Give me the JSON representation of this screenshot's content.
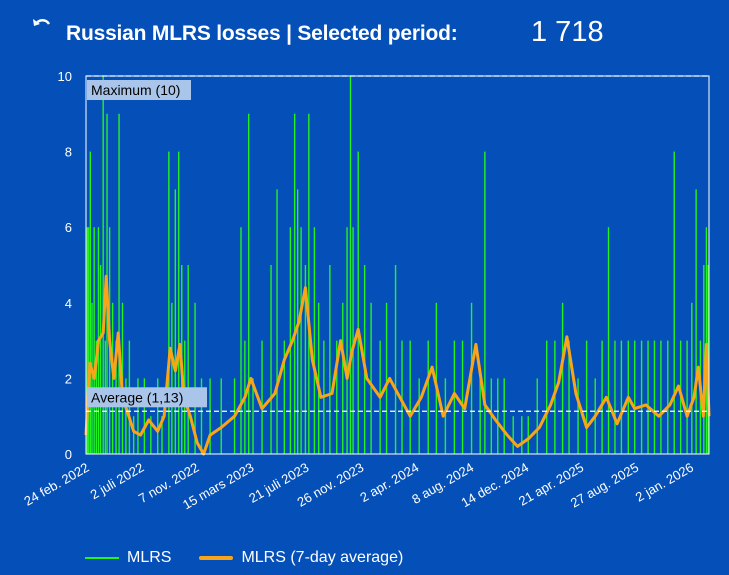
{
  "header": {
    "back_icon": "undo-arrow-icon",
    "title": "Russian MLRS losses | Selected period:",
    "total": "1 718"
  },
  "colors": {
    "background": "#0550b8",
    "daily": "#22f31e",
    "average": "#f9a51a",
    "label_box": "#a9c6ea"
  },
  "legend": {
    "series_daily": "MLRS",
    "series_average": "MLRS (7-day average)"
  },
  "chart_data": {
    "type": "bar",
    "x_start": "2022-02-24",
    "x_end": "2026-02-14",
    "ylim": [
      0,
      10
    ],
    "y_ticks": [
      "0",
      "2",
      "4",
      "6",
      "8",
      "10"
    ],
    "x_tick_labels": [
      "24 feb. 2022",
      "2 juli 2022",
      "7 nov. 2022",
      "15 mars 2023",
      "21 juli 2023",
      "26 nov. 2023",
      "2 apr. 2024",
      "8 aug. 2024",
      "14 dec. 2024",
      "21 apr. 2025",
      "27 aug. 2025",
      "2 jan. 2026"
    ],
    "x_tick_dates": [
      "2022-02-24",
      "2022-07-02",
      "2022-11-07",
      "2023-03-15",
      "2023-07-21",
      "2023-11-26",
      "2024-04-02",
      "2024-08-08",
      "2024-12-14",
      "2025-04-21",
      "2025-08-27",
      "2026-01-02"
    ],
    "grid": false,
    "reference_lines": [
      {
        "label": "Maximum (10)",
        "value": 10
      },
      {
        "label": "Average (1,13)",
        "value": 1.13
      }
    ],
    "series": [
      {
        "name": "MLRS",
        "style": "bars",
        "points": [
          [
            "2022-02-27",
            6
          ],
          [
            "2022-03-02",
            6
          ],
          [
            "2022-03-06",
            8
          ],
          [
            "2022-03-10",
            4
          ],
          [
            "2022-03-15",
            6
          ],
          [
            "2022-03-20",
            3
          ],
          [
            "2022-03-25",
            6
          ],
          [
            "2022-03-30",
            5
          ],
          [
            "2022-04-05",
            10
          ],
          [
            "2022-04-10",
            3
          ],
          [
            "2022-04-14",
            9
          ],
          [
            "2022-04-20",
            6
          ],
          [
            "2022-04-27",
            4
          ],
          [
            "2022-05-05",
            3
          ],
          [
            "2022-05-12",
            9
          ],
          [
            "2022-05-20",
            4
          ],
          [
            "2022-05-28",
            2
          ],
          [
            "2022-06-05",
            3
          ],
          [
            "2022-06-15",
            1
          ],
          [
            "2022-06-25",
            2
          ],
          [
            "2022-07-10",
            2
          ],
          [
            "2022-07-25",
            1
          ],
          [
            "2022-08-10",
            2
          ],
          [
            "2022-08-20",
            1
          ],
          [
            "2022-09-05",
            8
          ],
          [
            "2022-09-12",
            4
          ],
          [
            "2022-09-20",
            7
          ],
          [
            "2022-09-28",
            8
          ],
          [
            "2022-10-05",
            5
          ],
          [
            "2022-10-12",
            3
          ],
          [
            "2022-10-20",
            5
          ],
          [
            "2022-11-05",
            4
          ],
          [
            "2022-11-20",
            2
          ],
          [
            "2022-12-10",
            2
          ],
          [
            "2023-01-05",
            2
          ],
          [
            "2023-02-05",
            2
          ],
          [
            "2023-02-20",
            6
          ],
          [
            "2023-03-01",
            3
          ],
          [
            "2023-03-10",
            9
          ],
          [
            "2023-03-20",
            2
          ],
          [
            "2023-04-10",
            3
          ],
          [
            "2023-05-01",
            5
          ],
          [
            "2023-05-15",
            7
          ],
          [
            "2023-06-01",
            3
          ],
          [
            "2023-06-15",
            6
          ],
          [
            "2023-06-25",
            9
          ],
          [
            "2023-07-02",
            7
          ],
          [
            "2023-07-10",
            6
          ],
          [
            "2023-07-20",
            5
          ],
          [
            "2023-07-28",
            9
          ],
          [
            "2023-08-10",
            6
          ],
          [
            "2023-08-20",
            4
          ],
          [
            "2023-09-01",
            3
          ],
          [
            "2023-09-15",
            5
          ],
          [
            "2023-10-01",
            3
          ],
          [
            "2023-10-15",
            4
          ],
          [
            "2023-10-25",
            6
          ],
          [
            "2023-11-02",
            10
          ],
          [
            "2023-11-08",
            6
          ],
          [
            "2023-11-20",
            8
          ],
          [
            "2023-12-05",
            5
          ],
          [
            "2023-12-20",
            4
          ],
          [
            "2024-01-10",
            3
          ],
          [
            "2024-01-25",
            4
          ],
          [
            "2024-02-15",
            5
          ],
          [
            "2024-03-01",
            3
          ],
          [
            "2024-03-20",
            3
          ],
          [
            "2024-04-10",
            2
          ],
          [
            "2024-05-01",
            3
          ],
          [
            "2024-05-20",
            4
          ],
          [
            "2024-06-10",
            2
          ],
          [
            "2024-07-01",
            3
          ],
          [
            "2024-07-20",
            3
          ],
          [
            "2024-08-10",
            4
          ],
          [
            "2024-08-30",
            2
          ],
          [
            "2024-09-10",
            8
          ],
          [
            "2024-09-25",
            2
          ],
          [
            "2024-10-10",
            2
          ],
          [
            "2024-10-25",
            2
          ],
          [
            "2024-11-15",
            1
          ],
          [
            "2024-12-05",
            1
          ],
          [
            "2024-12-20",
            1
          ],
          [
            "2025-01-10",
            2
          ],
          [
            "2025-02-01",
            3
          ],
          [
            "2025-02-20",
            3
          ],
          [
            "2025-03-10",
            4
          ],
          [
            "2025-03-25",
            3
          ],
          [
            "2025-04-15",
            2
          ],
          [
            "2025-05-05",
            3
          ],
          [
            "2025-05-25",
            2
          ],
          [
            "2025-06-10",
            3
          ],
          [
            "2025-06-25",
            6
          ],
          [
            "2025-07-10",
            3
          ],
          [
            "2025-07-25",
            3
          ],
          [
            "2025-08-10",
            3
          ],
          [
            "2025-08-25",
            3
          ],
          [
            "2025-09-10",
            3
          ],
          [
            "2025-09-25",
            3
          ],
          [
            "2025-10-10",
            3
          ],
          [
            "2025-10-25",
            3
          ],
          [
            "2025-11-10",
            3
          ],
          [
            "2025-11-25",
            8
          ],
          [
            "2025-12-10",
            3
          ],
          [
            "2025-12-25",
            3
          ],
          [
            "2026-01-05",
            4
          ],
          [
            "2026-01-15",
            7
          ],
          [
            "2026-01-25",
            3
          ],
          [
            "2026-02-02",
            5
          ],
          [
            "2026-02-08",
            6
          ],
          [
            "2026-02-12",
            5
          ]
        ]
      },
      {
        "name": "MLRS (7-day average)",
        "style": "line",
        "points": [
          [
            "2022-02-24",
            0.5
          ],
          [
            "2022-03-05",
            2.4
          ],
          [
            "2022-03-15",
            2.0
          ],
          [
            "2022-03-25",
            3.0
          ],
          [
            "2022-04-05",
            3.2
          ],
          [
            "2022-04-12",
            4.7
          ],
          [
            "2022-04-20",
            3.0
          ],
          [
            "2022-04-30",
            2.0
          ],
          [
            "2022-05-10",
            3.2
          ],
          [
            "2022-05-20",
            1.5
          ],
          [
            "2022-06-01",
            1.1
          ],
          [
            "2022-06-15",
            0.6
          ],
          [
            "2022-07-01",
            0.5
          ],
          [
            "2022-07-20",
            0.9
          ],
          [
            "2022-08-10",
            0.6
          ],
          [
            "2022-08-25",
            1.0
          ],
          [
            "2022-09-08",
            2.8
          ],
          [
            "2022-09-20",
            2.2
          ],
          [
            "2022-10-01",
            2.9
          ],
          [
            "2022-10-10",
            1.5
          ],
          [
            "2022-10-25",
            1.0
          ],
          [
            "2022-11-10",
            0.3
          ],
          [
            "2022-11-25",
            0.0
          ],
          [
            "2022-12-10",
            0.5
          ],
          [
            "2023-01-05",
            0.7
          ],
          [
            "2023-02-05",
            1.0
          ],
          [
            "2023-03-01",
            1.5
          ],
          [
            "2023-03-15",
            2.0
          ],
          [
            "2023-04-10",
            1.2
          ],
          [
            "2023-05-10",
            1.6
          ],
          [
            "2023-06-01",
            2.5
          ],
          [
            "2023-06-20",
            3.0
          ],
          [
            "2023-07-05",
            3.5
          ],
          [
            "2023-07-20",
            4.4
          ],
          [
            "2023-08-05",
            2.5
          ],
          [
            "2023-08-25",
            1.5
          ],
          [
            "2023-09-20",
            1.6
          ],
          [
            "2023-10-10",
            3.0
          ],
          [
            "2023-10-25",
            2.0
          ],
          [
            "2023-11-05",
            2.7
          ],
          [
            "2023-11-20",
            3.3
          ],
          [
            "2023-12-10",
            2.0
          ],
          [
            "2024-01-10",
            1.5
          ],
          [
            "2024-02-01",
            2.0
          ],
          [
            "2024-02-25",
            1.5
          ],
          [
            "2024-03-20",
            1.0
          ],
          [
            "2024-04-15",
            1.5
          ],
          [
            "2024-05-10",
            2.3
          ],
          [
            "2024-06-05",
            1.0
          ],
          [
            "2024-07-01",
            1.6
          ],
          [
            "2024-07-25",
            1.2
          ],
          [
            "2024-08-20",
            2.9
          ],
          [
            "2024-09-10",
            1.3
          ],
          [
            "2024-10-05",
            0.9
          ],
          [
            "2024-11-01",
            0.5
          ],
          [
            "2024-11-25",
            0.2
          ],
          [
            "2024-12-20",
            0.4
          ],
          [
            "2025-01-15",
            0.7
          ],
          [
            "2025-02-10",
            1.3
          ],
          [
            "2025-03-01",
            1.9
          ],
          [
            "2025-03-20",
            3.1
          ],
          [
            "2025-04-10",
            1.6
          ],
          [
            "2025-05-05",
            0.7
          ],
          [
            "2025-05-25",
            1.0
          ],
          [
            "2025-06-20",
            1.5
          ],
          [
            "2025-07-15",
            0.8
          ],
          [
            "2025-08-10",
            1.5
          ],
          [
            "2025-08-25",
            1.2
          ],
          [
            "2025-09-20",
            1.3
          ],
          [
            "2025-10-20",
            1.0
          ],
          [
            "2025-11-15",
            1.3
          ],
          [
            "2025-12-05",
            1.8
          ],
          [
            "2025-12-25",
            1.0
          ],
          [
            "2026-01-10",
            1.5
          ],
          [
            "2026-01-20",
            2.3
          ],
          [
            "2026-02-01",
            1.0
          ],
          [
            "2026-02-08",
            2.9
          ],
          [
            "2026-02-14",
            1.0
          ]
        ]
      }
    ]
  }
}
